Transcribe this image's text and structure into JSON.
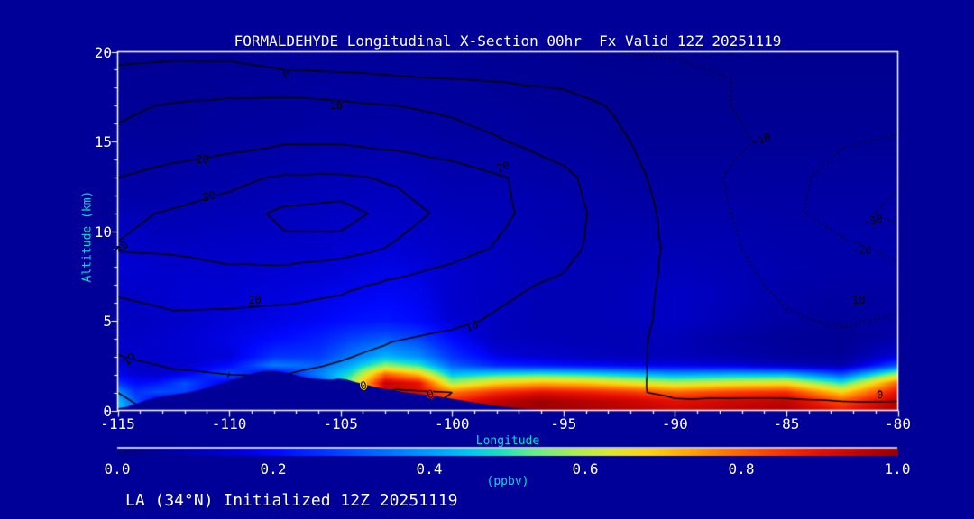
{
  "title": "FORMALDEHYDE Longitudinal X-Section 00hr  Fx Valid 12Z 20251119",
  "footer": "LA (34°N) Initialized 12Z 20251119",
  "x_axis": {
    "title": "Longitude",
    "ticks": [
      -115,
      -110,
      -105,
      -100,
      -95,
      -90,
      -85,
      -80
    ],
    "minor_step": 1,
    "range": [
      -115,
      -80
    ]
  },
  "y_axis": {
    "title": "Altitude (km)",
    "ticks": [
      0,
      5,
      10,
      15,
      20
    ],
    "minor_step": 1,
    "range": [
      0,
      20
    ]
  },
  "colorbar": {
    "title": "(ppbv)",
    "tick_labels": [
      "0.0",
      "0.2",
      "0.4",
      "0.6",
      "0.8",
      "1.0"
    ],
    "range": [
      0,
      1
    ]
  },
  "colors": {
    "background": "#000099",
    "frame": "#FFFFFF",
    "text": "#FFFFFF",
    "axis_title": "#00E0D2",
    "contour_line": "#000000"
  },
  "chart_data": {
    "type": "heatmap",
    "title": "FORMALDEHYDE Longitudinal X-Section 00hr  Fx Valid 12Z 20251119",
    "xlabel": "Longitude",
    "ylabel": "Altitude (km)",
    "units": "ppbv",
    "xlim": [
      -115,
      -80
    ],
    "ylim": [
      0,
      20
    ],
    "colormap": [
      [
        0.0,
        "#000080"
      ],
      [
        0.08,
        "#0000A8"
      ],
      [
        0.15,
        "#0000D2"
      ],
      [
        0.2,
        "#0008FF"
      ],
      [
        0.27,
        "#0038FF"
      ],
      [
        0.34,
        "#0070FF"
      ],
      [
        0.4,
        "#009DFF"
      ],
      [
        0.45,
        "#00C8F0"
      ],
      [
        0.49,
        "#1BE0C0"
      ],
      [
        0.53,
        "#63EE8C"
      ],
      [
        0.58,
        "#A5EF56"
      ],
      [
        0.63,
        "#DCE92F"
      ],
      [
        0.68,
        "#FFD313"
      ],
      [
        0.73,
        "#FFA800"
      ],
      [
        0.79,
        "#FF6D00"
      ],
      [
        0.85,
        "#FB3500"
      ],
      [
        0.9,
        "#E51000"
      ],
      [
        0.95,
        "#C20300"
      ],
      [
        1.0,
        "#970000"
      ]
    ],
    "fill_field": {
      "lons": [
        -115,
        -114.2,
        -113.2,
        -112,
        -110,
        -108,
        -106,
        -104.5,
        -103,
        -101.5,
        -100,
        -98,
        -96,
        -94,
        -92,
        -90,
        -87.5,
        -85,
        -82.5,
        -80
      ],
      "alts": [
        0,
        0.5,
        1,
        1.5,
        2,
        2.5,
        3,
        4,
        5,
        6.5,
        8,
        10,
        12,
        16,
        20
      ],
      "values": [
        [
          0.46,
          0.34,
          0.16,
          0.13,
          0.11,
          0.1,
          0.12,
          0.3,
          0.85,
          0.96,
          0.92,
          0.98,
          1.0,
          0.98,
          0.96,
          0.93,
          0.95,
          0.97,
          0.88,
          0.97
        ],
        [
          0.44,
          0.3,
          0.15,
          0.13,
          0.11,
          0.1,
          0.12,
          0.32,
          0.88,
          0.95,
          0.88,
          0.95,
          0.99,
          0.96,
          0.94,
          0.9,
          0.93,
          0.95,
          0.82,
          0.96
        ],
        [
          0.38,
          0.26,
          0.3,
          0.28,
          0.12,
          0.11,
          0.14,
          0.38,
          0.92,
          0.92,
          0.78,
          0.86,
          0.9,
          0.88,
          0.85,
          0.8,
          0.84,
          0.86,
          0.68,
          0.9
        ],
        [
          0.26,
          0.2,
          0.22,
          0.3,
          0.16,
          0.13,
          0.28,
          0.58,
          0.95,
          0.9,
          0.58,
          0.68,
          0.72,
          0.7,
          0.65,
          0.6,
          0.64,
          0.66,
          0.5,
          0.8
        ],
        [
          0.18,
          0.15,
          0.14,
          0.18,
          0.3,
          0.16,
          0.36,
          0.5,
          0.8,
          0.7,
          0.44,
          0.48,
          0.5,
          0.48,
          0.44,
          0.4,
          0.42,
          0.42,
          0.3,
          0.58
        ],
        [
          0.15,
          0.13,
          0.13,
          0.14,
          0.2,
          0.36,
          0.32,
          0.42,
          0.56,
          0.5,
          0.32,
          0.24,
          0.22,
          0.2,
          0.18,
          0.17,
          0.16,
          0.12,
          0.09,
          0.3
        ],
        [
          0.14,
          0.14,
          0.14,
          0.15,
          0.16,
          0.26,
          0.27,
          0.35,
          0.43,
          0.38,
          0.26,
          0.17,
          0.14,
          0.12,
          0.11,
          0.11,
          0.09,
          0.06,
          0.05,
          0.16
        ],
        [
          0.13,
          0.13,
          0.14,
          0.15,
          0.17,
          0.2,
          0.23,
          0.28,
          0.31,
          0.28,
          0.2,
          0.12,
          0.11,
          0.1,
          0.1,
          0.11,
          0.07,
          0.05,
          0.04,
          0.08
        ],
        [
          0.12,
          0.12,
          0.13,
          0.14,
          0.16,
          0.17,
          0.19,
          0.21,
          0.22,
          0.2,
          0.15,
          0.12,
          0.1,
          0.1,
          0.11,
          0.13,
          0.1,
          0.07,
          0.05,
          0.07
        ],
        [
          0.13,
          0.13,
          0.14,
          0.15,
          0.15,
          0.16,
          0.17,
          0.18,
          0.19,
          0.18,
          0.14,
          0.12,
          0.1,
          0.1,
          0.11,
          0.13,
          0.11,
          0.08,
          0.07,
          0.07
        ],
        [
          0.15,
          0.15,
          0.14,
          0.14,
          0.14,
          0.15,
          0.15,
          0.16,
          0.17,
          0.16,
          0.14,
          0.12,
          0.11,
          0.1,
          0.1,
          0.11,
          0.1,
          0.09,
          0.08,
          0.08
        ],
        [
          0.12,
          0.12,
          0.11,
          0.11,
          0.12,
          0.12,
          0.13,
          0.14,
          0.14,
          0.13,
          0.12,
          0.11,
          0.1,
          0.09,
          0.09,
          0.09,
          0.09,
          0.08,
          0.08,
          0.08
        ],
        [
          0.08,
          0.08,
          0.08,
          0.09,
          0.09,
          0.1,
          0.11,
          0.11,
          0.12,
          0.11,
          0.1,
          0.1,
          0.09,
          0.08,
          0.07,
          0.07,
          0.07,
          0.07,
          0.07,
          0.07
        ],
        [
          0.05,
          0.05,
          0.05,
          0.05,
          0.06,
          0.06,
          0.07,
          0.07,
          0.07,
          0.07,
          0.06,
          0.06,
          0.05,
          0.05,
          0.04,
          0.04,
          0.04,
          0.04,
          0.04,
          0.04
        ],
        [
          0.04,
          0.04,
          0.04,
          0.04,
          0.04,
          0.05,
          0.05,
          0.05,
          0.05,
          0.05,
          0.05,
          0.04,
          0.04,
          0.03,
          0.03,
          0.03,
          0.03,
          0.03,
          0.03,
          0.03
        ]
      ]
    },
    "line_field": {
      "levels_solid": [
        0,
        10,
        20,
        30,
        35
      ],
      "levels_dotted": [
        -30,
        -20,
        -10
      ],
      "lons": [
        -115,
        -112.5,
        -110,
        -107.5,
        -105,
        -102.5,
        -100,
        -97.5,
        -95,
        -92.5,
        -90,
        -87.5,
        -85,
        -82.5,
        -80
      ],
      "alts": [
        0,
        1,
        2,
        3.5,
        5,
        7,
        9,
        11,
        13,
        15,
        17,
        18.5,
        20
      ],
      "values": [
        [
          -2,
          2,
          3,
          4,
          3,
          -1,
          1,
          2,
          2,
          2,
          2,
          2,
          2,
          2,
          1
        ],
        [
          0,
          4,
          6,
          6,
          3,
          -1,
          0,
          1,
          1,
          1,
          -1,
          -1,
          -1,
          -2,
          -1
        ],
        [
          7,
          9,
          10,
          10,
          8,
          5,
          3,
          3,
          3,
          2,
          -2,
          -4,
          -5,
          -5,
          -3
        ],
        [
          11,
          14,
          15,
          14,
          12,
          9,
          8,
          7,
          5,
          3,
          -3,
          -6,
          -7,
          -7,
          -5
        ],
        [
          16,
          18,
          17,
          16,
          15,
          13,
          11,
          9,
          7,
          3,
          -2,
          -6,
          -9,
          -11,
          -9
        ],
        [
          22,
          25,
          26,
          25,
          22,
          18,
          14,
          11,
          9,
          4,
          -2,
          -7,
          -12,
          -16,
          -14
        ],
        [
          30.5,
          31,
          33,
          34,
          33,
          29,
          24,
          18,
          12,
          6,
          -2,
          -9,
          -14,
          -17,
          -23
        ],
        [
          28,
          31,
          33,
          36,
          37,
          33,
          28,
          21,
          13,
          6,
          -3,
          -10,
          -17,
          -26,
          -33
        ],
        [
          20,
          24,
          28,
          31,
          31,
          29,
          25,
          20,
          12,
          4,
          -4,
          -11,
          -17,
          -24,
          -28
        ],
        [
          12,
          14,
          16,
          19,
          19,
          17,
          14,
          10,
          6,
          1,
          -4,
          -8,
          -13,
          -19,
          -21
        ],
        [
          8,
          11,
          13,
          14,
          12,
          10,
          8,
          6,
          3,
          -1,
          -6,
          -10,
          -13,
          -15,
          -16
        ],
        [
          1,
          2,
          2,
          1,
          1,
          0.5,
          0,
          -1,
          -2,
          -4,
          -7,
          -10,
          -12,
          -13,
          -14
        ],
        [
          -1,
          -1,
          -1,
          -2,
          -3,
          -4,
          -5,
          -6,
          -8,
          -10,
          -11,
          -12,
          -12,
          -13,
          -13
        ]
      ]
    },
    "contour_labels": [
      {
        "text": "0",
        "lon": -107.4,
        "alt": 18.7,
        "rot": -25
      },
      {
        "text": "10",
        "lon": -105.2,
        "alt": 17.0,
        "rot": 0
      },
      {
        "text": "20",
        "lon": -111.2,
        "alt": 14.0,
        "rot": 0
      },
      {
        "text": "20",
        "lon": -97.7,
        "alt": 13.45,
        "rot": -20
      },
      {
        "text": "30",
        "lon": -110.9,
        "alt": 11.85,
        "rot": -15
      },
      {
        "text": "30",
        "lon": -114.7,
        "alt": 8.8,
        "rot": -50
      },
      {
        "text": "20",
        "lon": -108.85,
        "alt": 6.15,
        "rot": 0
      },
      {
        "text": "10",
        "lon": -114.4,
        "alt": 2.6,
        "rot": -45
      },
      {
        "text": "10",
        "lon": -99.1,
        "alt": 4.55,
        "rot": -25
      },
      {
        "text": "0",
        "lon": -103.95,
        "alt": 1.35,
        "rot": -10
      },
      {
        "text": "0",
        "lon": -100.95,
        "alt": 0.85,
        "rot": -15
      },
      {
        "text": "0",
        "lon": -80.8,
        "alt": 0.85,
        "rot": 0
      },
      {
        "text": "-10",
        "lon": -86.1,
        "alt": 14.9,
        "rot": -20
      },
      {
        "text": "-30",
        "lon": -81.1,
        "alt": 10.5,
        "rot": -10
      },
      {
        "text": "-20",
        "lon": -81.6,
        "alt": 8.95,
        "rot": 0
      },
      {
        "text": "-10",
        "lon": -81.9,
        "alt": 6.15,
        "rot": 0
      }
    ],
    "terrain": [
      [
        -115,
        0.12
      ],
      [
        -114.6,
        0.2
      ],
      [
        -114.2,
        0.38
      ],
      [
        -113.6,
        0.62
      ],
      [
        -113,
        0.78
      ],
      [
        -112.4,
        0.9
      ],
      [
        -111.8,
        1.02
      ],
      [
        -111.2,
        1.18
      ],
      [
        -110.6,
        1.42
      ],
      [
        -110,
        1.63
      ],
      [
        -109.4,
        1.88
      ],
      [
        -108.9,
        2.08
      ],
      [
        -108.4,
        2.2
      ],
      [
        -107.9,
        2.2
      ],
      [
        -107.4,
        2.08
      ],
      [
        -106.9,
        1.93
      ],
      [
        -106.4,
        1.8
      ],
      [
        -105.9,
        1.74
      ],
      [
        -105.45,
        1.72
      ],
      [
        -105.1,
        1.77
      ],
      [
        -104.75,
        1.73
      ],
      [
        -104.4,
        1.6
      ],
      [
        -104,
        1.48
      ],
      [
        -103.4,
        1.3
      ],
      [
        -102.8,
        1.16
      ],
      [
        -102.2,
        1.03
      ],
      [
        -101.6,
        0.93
      ],
      [
        -101,
        0.83
      ],
      [
        -100.4,
        0.73
      ],
      [
        -99.8,
        0.6
      ],
      [
        -99.2,
        0.48
      ],
      [
        -98.6,
        0.36
      ],
      [
        -98,
        0.26
      ],
      [
        -97.4,
        0.16
      ],
      [
        -96.8,
        0.09
      ],
      [
        -96.2,
        0.04
      ],
      [
        -95.5,
        0.01
      ],
      [
        -80,
        0.0
      ]
    ]
  }
}
